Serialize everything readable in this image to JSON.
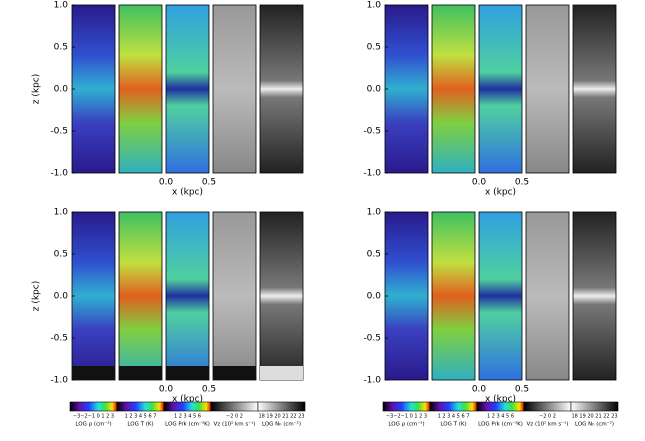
{
  "figures": [
    {
      "y_label": "z (kpc)",
      "y_ticks": [
        "1.0",
        "0.5",
        "0.0",
        "-0.5",
        "-1.0"
      ],
      "x_ticks": [
        "0.0",
        "0.5"
      ],
      "x_label": "x (kpc)"
    },
    {
      "y_ticks": [
        "1.0",
        "0.5",
        "0.0",
        "-0.5",
        "-1.0"
      ],
      "x_ticks": [
        "0.0",
        "0.5"
      ],
      "x_label": "x (kpc)"
    },
    {
      "y_label": "z (kpc)",
      "y_ticks": [
        "1.0",
        "0.5",
        "0.0",
        "-0.5",
        "-1.0"
      ],
      "x_ticks": [
        "0.0",
        "0.5"
      ],
      "x_label": "x (kpc)"
    },
    {
      "y_ticks": [
        "1.0",
        "0.5",
        "0.0",
        "-0.5",
        "-1.0"
      ],
      "x_ticks": [
        "0.0",
        "0.5"
      ],
      "x_label": "x (kpc)"
    }
  ],
  "colorbars": [
    [
      {
        "ticks": "−3−2−1 0 1 2 3",
        "title": "LOG ρ (cm⁻³)"
      },
      {
        "ticks": "1 2 3 4 5 6 7",
        "title": "LOG T (K)"
      },
      {
        "ticks": "1 2 3 4 5 6",
        "title": "LOG P/k (cm⁻³K)"
      },
      {
        "ticks": "−2  0  2",
        "title": "Vz (10² km s⁻¹)"
      },
      {
        "ticks": "18 19 20 21 22 23",
        "title": "LOG Nₕ (cm⁻²)"
      }
    ],
    [
      {
        "ticks": "−3−2−1 0 1 2 3",
        "title": "LOG ρ (cm⁻³)"
      },
      {
        "ticks": "1 2 3 4 5 6 7",
        "title": "LOG T (K)"
      },
      {
        "ticks": "1 2 3 4 5 6",
        "title": "LOG P/k (cm⁻³K)"
      },
      {
        "ticks": "−2  0  2",
        "title": "Vz (10² km s⁻¹)"
      },
      {
        "ticks": "18 19 20 21 22 23",
        "title": "LOG Nₕ (cm⁻²)"
      }
    ]
  ]
}
